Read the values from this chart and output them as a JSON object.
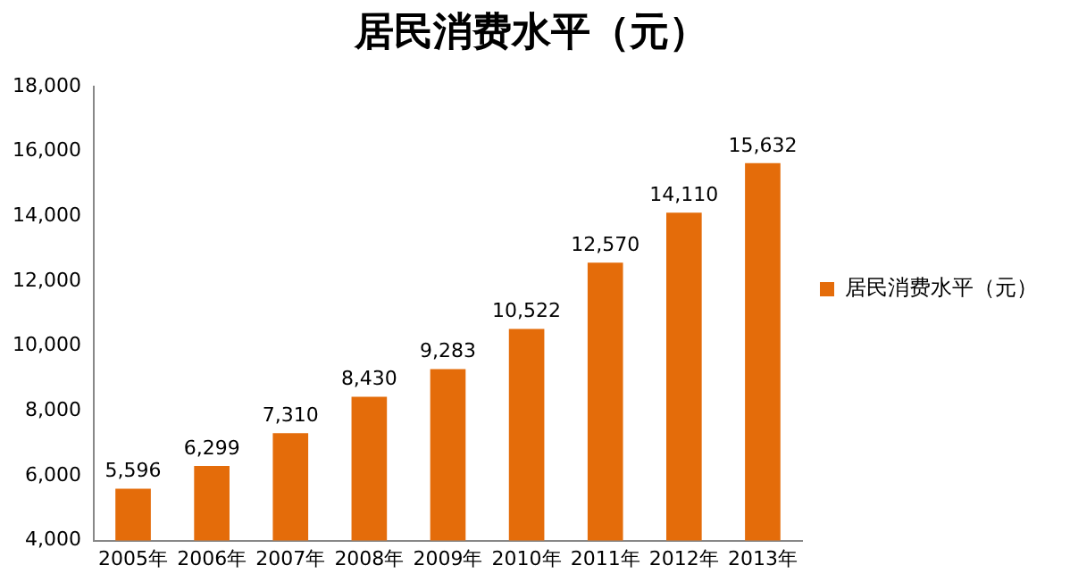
{
  "chart_data": {
    "type": "bar",
    "title": "居民消费水平（元）",
    "categories": [
      "2005年",
      "2006年",
      "2007年",
      "2008年",
      "2009年",
      "2010年",
      "2011年",
      "2012年",
      "2013年"
    ],
    "series": [
      {
        "name": "居民消费水平（元）",
        "color": "#e46c0a",
        "values": [
          5596,
          6299,
          7310,
          8430,
          9283,
          10522,
          12570,
          14110,
          15632
        ],
        "value_labels": [
          "5,596",
          "6,299",
          "7,310",
          "8,430",
          "9,283",
          "10,522",
          "12,570",
          "14,110",
          "15,632"
        ]
      }
    ],
    "ylim": [
      4000,
      18000
    ],
    "yticks": [
      {
        "value": 4000,
        "label": "4,000"
      },
      {
        "value": 6000,
        "label": "6,000"
      },
      {
        "value": 8000,
        "label": "8,000"
      },
      {
        "value": 10000,
        "label": "10,000"
      },
      {
        "value": 12000,
        "label": "12,000"
      },
      {
        "value": 14000,
        "label": "14,000"
      },
      {
        "value": 16000,
        "label": "16,000"
      },
      {
        "value": 18000,
        "label": "18,000"
      }
    ],
    "grid": false,
    "legend": "right"
  }
}
